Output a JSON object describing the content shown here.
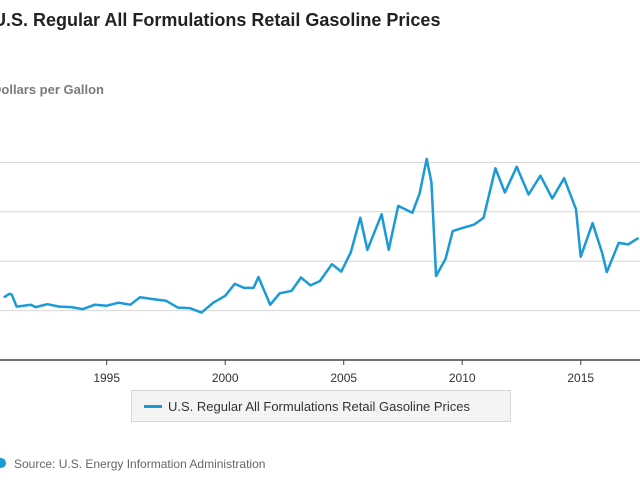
{
  "title": "U.S. Regular All Formulations Retail Gasoline Prices",
  "ylabel_text": "Dollars per Gallon",
  "legend": {
    "label": "U.S. Regular All Formulations Retail Gasoline Prices"
  },
  "source": "Source: U.S. Energy Information Administration",
  "colors": {
    "line": "#1a9ad6",
    "grid": "#d6d6d6",
    "axis": "#444444",
    "tick_label": "#333333"
  },
  "chart_data": {
    "type": "line",
    "title": "U.S. Regular All Formulations Retail Gasoline Prices",
    "ylabel": "Dollars per Gallon",
    "xlabel": "",
    "xlim": [
      1990.5,
      2017.5
    ],
    "ylim": [
      0,
      5
    ],
    "y_gridlines": [
      1,
      2,
      3,
      4
    ],
    "x_ticks": [
      1995,
      2000,
      2005,
      2010,
      2015
    ],
    "grid": true,
    "legend_position": "bottom",
    "series": [
      {
        "name": "U.S. Regular All Formulations Retail Gasoline Prices",
        "points": [
          [
            1990.7,
            1.28
          ],
          [
            1990.9,
            1.34
          ],
          [
            1991.0,
            1.32
          ],
          [
            1991.2,
            1.08
          ],
          [
            1991.5,
            1.1
          ],
          [
            1991.8,
            1.12
          ],
          [
            1992.0,
            1.07
          ],
          [
            1992.5,
            1.13
          ],
          [
            1993.0,
            1.08
          ],
          [
            1993.5,
            1.07
          ],
          [
            1994.0,
            1.03
          ],
          [
            1994.5,
            1.12
          ],
          [
            1995.0,
            1.1
          ],
          [
            1995.5,
            1.16
          ],
          [
            1996.0,
            1.12
          ],
          [
            1996.4,
            1.27
          ],
          [
            1997.0,
            1.23
          ],
          [
            1997.5,
            1.2
          ],
          [
            1998.0,
            1.06
          ],
          [
            1998.5,
            1.05
          ],
          [
            1999.0,
            0.96
          ],
          [
            1999.5,
            1.16
          ],
          [
            2000.0,
            1.3
          ],
          [
            2000.4,
            1.54
          ],
          [
            2000.8,
            1.46
          ],
          [
            2001.2,
            1.46
          ],
          [
            2001.4,
            1.68
          ],
          [
            2001.9,
            1.12
          ],
          [
            2002.3,
            1.35
          ],
          [
            2002.8,
            1.4
          ],
          [
            2003.2,
            1.67
          ],
          [
            2003.6,
            1.51
          ],
          [
            2004.0,
            1.6
          ],
          [
            2004.5,
            1.94
          ],
          [
            2004.9,
            1.79
          ],
          [
            2005.3,
            2.18
          ],
          [
            2005.7,
            2.88
          ],
          [
            2006.0,
            2.23
          ],
          [
            2006.6,
            2.95
          ],
          [
            2006.9,
            2.23
          ],
          [
            2007.3,
            3.12
          ],
          [
            2007.9,
            2.98
          ],
          [
            2008.2,
            3.37
          ],
          [
            2008.5,
            4.07
          ],
          [
            2008.7,
            3.6
          ],
          [
            2008.9,
            1.7
          ],
          [
            2009.3,
            2.05
          ],
          [
            2009.6,
            2.61
          ],
          [
            2010.0,
            2.67
          ],
          [
            2010.5,
            2.74
          ],
          [
            2010.9,
            2.88
          ],
          [
            2011.4,
            3.88
          ],
          [
            2011.8,
            3.39
          ],
          [
            2012.3,
            3.91
          ],
          [
            2012.8,
            3.35
          ],
          [
            2013.3,
            3.73
          ],
          [
            2013.8,
            3.27
          ],
          [
            2014.3,
            3.68
          ],
          [
            2014.8,
            3.05
          ],
          [
            2015.0,
            2.09
          ],
          [
            2015.5,
            2.77
          ],
          [
            2015.9,
            2.17
          ],
          [
            2016.1,
            1.78
          ],
          [
            2016.6,
            2.37
          ],
          [
            2017.0,
            2.34
          ],
          [
            2017.4,
            2.46
          ]
        ]
      }
    ]
  }
}
